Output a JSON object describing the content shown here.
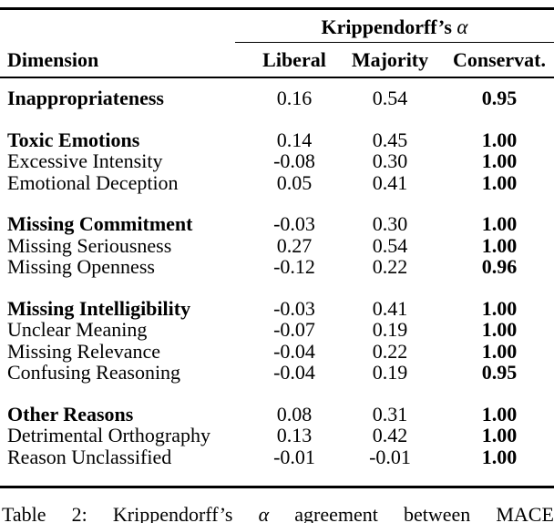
{
  "table": {
    "span_header": {
      "title": "Krippendorff’s",
      "alpha": "α"
    },
    "columns": {
      "dimension": "Dimension",
      "liberal": "Liberal",
      "majority": "Majority",
      "conservative": "Conservat."
    },
    "rows": [
      {
        "label": "Inappropriateness",
        "bold": true,
        "group_start": false,
        "liberal": "0.16",
        "majority": "0.54",
        "conservative": "0.95"
      },
      {
        "label": "Toxic Emotions",
        "bold": true,
        "group_start": true,
        "liberal": "0.14",
        "majority": "0.45",
        "conservative": "1.00"
      },
      {
        "label": "Excessive Intensity",
        "bold": false,
        "group_start": false,
        "liberal": "-0.08",
        "majority": "0.30",
        "conservative": "1.00"
      },
      {
        "label": "Emotional Deception",
        "bold": false,
        "group_start": false,
        "liberal": "0.05",
        "majority": "0.41",
        "conservative": "1.00"
      },
      {
        "label": "Missing Commitment",
        "bold": true,
        "group_start": true,
        "liberal": "-0.03",
        "majority": "0.30",
        "conservative": "1.00"
      },
      {
        "label": "Missing Seriousness",
        "bold": false,
        "group_start": false,
        "liberal": "0.27",
        "majority": "0.54",
        "conservative": "1.00"
      },
      {
        "label": "Missing Openness",
        "bold": false,
        "group_start": false,
        "liberal": "-0.12",
        "majority": "0.22",
        "conservative": "0.96"
      },
      {
        "label": "Missing Intelligibility",
        "bold": true,
        "group_start": true,
        "liberal": "-0.03",
        "majority": "0.41",
        "conservative": "1.00"
      },
      {
        "label": "Unclear Meaning",
        "bold": false,
        "group_start": false,
        "liberal": "-0.07",
        "majority": "0.19",
        "conservative": "1.00"
      },
      {
        "label": "Missing Relevance",
        "bold": false,
        "group_start": false,
        "liberal": "-0.04",
        "majority": "0.22",
        "conservative": "1.00"
      },
      {
        "label": "Confusing Reasoning",
        "bold": false,
        "group_start": false,
        "liberal": "-0.04",
        "majority": "0.19",
        "conservative": "0.95"
      },
      {
        "label": "Other Reasons",
        "bold": true,
        "group_start": true,
        "liberal": "0.08",
        "majority": "0.31",
        "conservative": "1.00"
      },
      {
        "label": "Detrimental Orthography",
        "bold": false,
        "group_start": false,
        "liberal": "0.13",
        "majority": "0.42",
        "conservative": "1.00"
      },
      {
        "label": "Reason Unclassified",
        "bold": false,
        "group_start": false,
        "liberal": "-0.01",
        "majority": "-0.01",
        "conservative": "1.00"
      }
    ]
  },
  "caption": {
    "word_1": "Table",
    "word_2": "2:",
    "word_3": "Krippendorff’s",
    "alpha": "α",
    "word_4": "agreement",
    "word_5": "between",
    "word_6": "MACE"
  },
  "colors": {
    "text": "#000000",
    "background": "#ffffff",
    "rule": "#000000"
  },
  "chart_data": {
    "type": "table",
    "title": "Krippendorff's α",
    "columns": [
      "Dimension",
      "Liberal",
      "Majority",
      "Conservat."
    ],
    "rows": [
      [
        "Inappropriateness",
        0.16,
        0.54,
        0.95
      ],
      [
        "Toxic Emotions",
        0.14,
        0.45,
        1.0
      ],
      [
        "Excessive Intensity",
        -0.08,
        0.3,
        1.0
      ],
      [
        "Emotional Deception",
        0.05,
        0.41,
        1.0
      ],
      [
        "Missing Commitment",
        -0.03,
        0.3,
        1.0
      ],
      [
        "Missing Seriousness",
        0.27,
        0.54,
        1.0
      ],
      [
        "Missing Openness",
        -0.12,
        0.22,
        0.96
      ],
      [
        "Missing Intelligibility",
        -0.03,
        0.41,
        1.0
      ],
      [
        "Unclear Meaning",
        -0.07,
        0.19,
        1.0
      ],
      [
        "Missing Relevance",
        -0.04,
        0.22,
        1.0
      ],
      [
        "Confusing Reasoning",
        -0.04,
        0.19,
        0.95
      ],
      [
        "Other Reasons",
        0.08,
        0.31,
        1.0
      ],
      [
        "Detrimental Orthography",
        0.13,
        0.42,
        1.0
      ],
      [
        "Reason Unclassified",
        -0.01,
        -0.01,
        1.0
      ]
    ]
  }
}
